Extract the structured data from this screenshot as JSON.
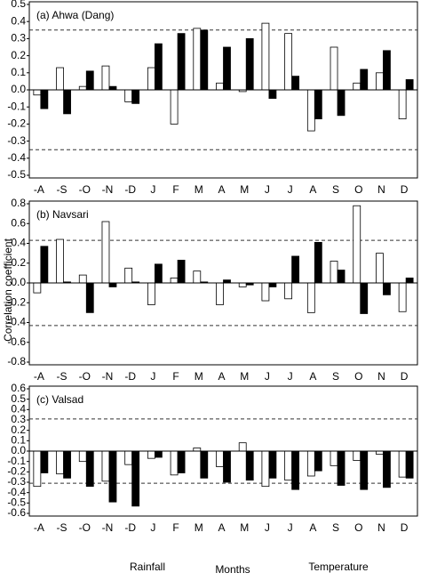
{
  "chart_data": [
    {
      "type": "bar",
      "title": "(a) Ahwa (Dang)",
      "categories": [
        "-A",
        "-S",
        "-O",
        "-N",
        "-D",
        "J",
        "F",
        "M",
        "A",
        "M",
        "J",
        "J",
        "A",
        "S",
        "O",
        "N",
        "D"
      ],
      "series": [
        {
          "color": "#ffffff",
          "values": [
            -0.03,
            0.13,
            0.02,
            0.14,
            -0.07,
            0.13,
            -0.2,
            0.36,
            0.04,
            -0.01,
            0.39,
            0.33,
            -0.24,
            0.25,
            0.04,
            0.1,
            -0.17
          ]
        },
        {
          "color": "#000000",
          "values": [
            -0.11,
            -0.14,
            0.11,
            0.02,
            -0.08,
            0.27,
            0.33,
            0.35,
            0.25,
            0.3,
            -0.05,
            0.08,
            -0.17,
            -0.15,
            0.12,
            0.23,
            0.06
          ]
        }
      ],
      "ylim": [
        -0.5,
        0.5
      ],
      "yticks": [
        0.5,
        0.4,
        0.3,
        0.2,
        0.1,
        {
          "value": 0,
          "label": "0.0"
        },
        -0.1,
        -0.2,
        -0.3,
        -0.4,
        -0.5
      ],
      "hlines": [
        0.35,
        -0.35
      ]
    },
    {
      "type": "bar",
      "title": "(b) Navsari",
      "y_label": "Correlation coefficient",
      "categories": [
        "-A",
        "-S",
        "-O",
        "-N",
        "-D",
        "J",
        "F",
        "M",
        "A",
        "M",
        "J",
        "J",
        "A",
        "S",
        "O",
        "N",
        "D"
      ],
      "series": [
        {
          "color": "#ffffff",
          "values": [
            -0.1,
            0.44,
            0.08,
            0.62,
            0.15,
            -0.22,
            0.05,
            0.12,
            -0.22,
            -0.04,
            -0.18,
            -0.16,
            -0.3,
            0.22,
            0.78,
            0.3,
            -0.29
          ]
        },
        {
          "color": "#000000",
          "values": [
            0.37,
            0.01,
            -0.3,
            -0.04,
            0.01,
            0.19,
            0.23,
            0.01,
            0.03,
            -0.02,
            -0.04,
            0.27,
            0.41,
            0.13,
            -0.31,
            -0.12,
            0.05
          ]
        }
      ],
      "ylim": [
        -0.8,
        0.8
      ],
      "yticks": [
        0.8,
        0.6,
        0.4,
        0.2,
        {
          "value": 0,
          "label": "0.0"
        },
        -0.2,
        -0.4,
        -0.6,
        -0.8
      ],
      "hlines": [
        0.43,
        -0.43
      ]
    },
    {
      "type": "bar",
      "title": "(c) Valsad",
      "x_label": "Months",
      "annotations": [
        "Rainfall",
        "Temperature"
      ],
      "categories": [
        "-A",
        "-S",
        "-O",
        "-N",
        "-D",
        "J",
        "F",
        "M",
        "A",
        "M",
        "J",
        "J",
        "A",
        "S",
        "O",
        "N",
        "D"
      ],
      "series": [
        {
          "color": "#ffffff",
          "values": [
            -0.34,
            -0.22,
            -0.1,
            -0.29,
            -0.13,
            -0.07,
            -0.23,
            0.03,
            -0.15,
            0.08,
            -0.34,
            -0.28,
            -0.24,
            -0.14,
            -0.09,
            -0.03,
            -0.25
          ]
        },
        {
          "color": "#000000",
          "values": [
            -0.21,
            -0.26,
            -0.34,
            -0.49,
            -0.53,
            -0.06,
            -0.21,
            -0.26,
            -0.3,
            -0.28,
            -0.26,
            -0.37,
            -0.19,
            -0.33,
            -0.37,
            -0.35,
            -0.26
          ]
        }
      ],
      "ylim": [
        -0.6,
        0.6
      ],
      "yticks": [
        0.6,
        0.5,
        0.4,
        0.3,
        0.2,
        0.1,
        {
          "value": 0,
          "label": "0.0"
        },
        -0.1,
        -0.2,
        -0.3,
        -0.4,
        -0.5,
        -0.6
      ],
      "hlines": [
        0.31,
        -0.31
      ]
    }
  ]
}
